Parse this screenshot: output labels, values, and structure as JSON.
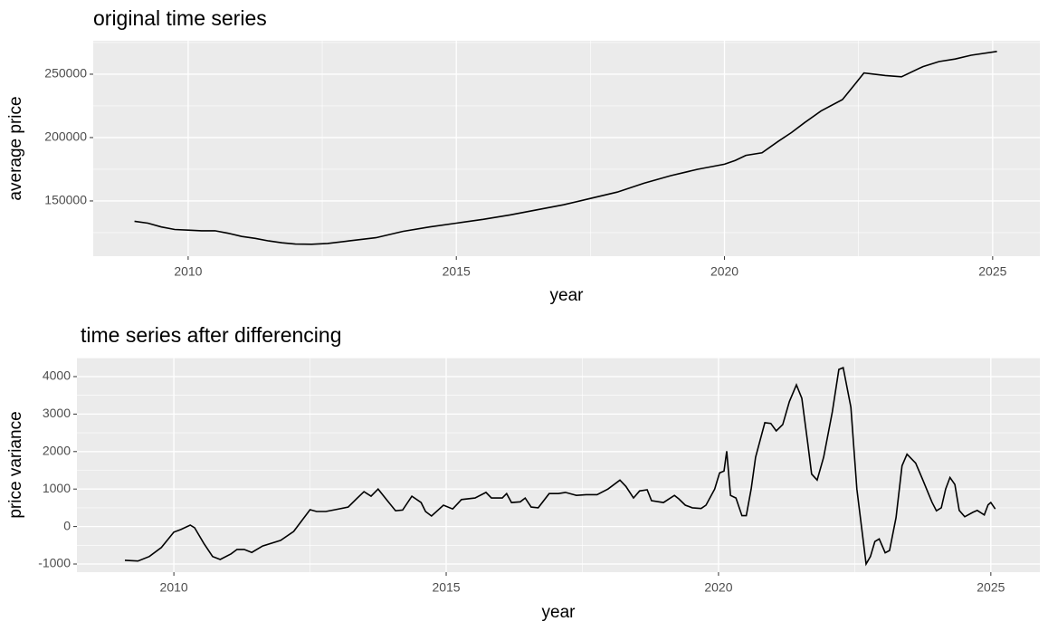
{
  "chart_data": [
    {
      "type": "line",
      "title": "original time series",
      "x_label": "year",
      "y_label": "average price",
      "xlim": [
        2008.23,
        2025.88
      ],
      "ylim": [
        106400,
        276400
      ],
      "xticks": [
        2010,
        2015,
        2020,
        2025
      ],
      "yticks": [
        150000,
        200000,
        250000
      ],
      "grid": true,
      "series": [
        {
          "name": "average price",
          "color": "#000000",
          "x": [
            2009.0,
            2009.25,
            2009.5,
            2009.75,
            2010.0,
            2010.25,
            2010.5,
            2010.75,
            2011.0,
            2011.25,
            2011.5,
            2011.75,
            2012.0,
            2012.3,
            2012.6,
            2013.0,
            2013.5,
            2014.0,
            2014.5,
            2015.0,
            2015.5,
            2016.0,
            2016.5,
            2017.0,
            2017.5,
            2018.0,
            2018.5,
            2019.0,
            2019.5,
            2020.0,
            2020.2,
            2020.4,
            2020.7,
            2021.0,
            2021.25,
            2021.5,
            2021.8,
            2022.2,
            2022.45,
            2022.6,
            2023.0,
            2023.3,
            2023.7,
            2024.0,
            2024.3,
            2024.6,
            2025.08
          ],
          "values": [
            134000,
            132500,
            129500,
            127500,
            127000,
            126500,
            126500,
            124500,
            122000,
            120500,
            118500,
            117000,
            116000,
            115800,
            116500,
            118500,
            121000,
            126000,
            129500,
            132500,
            135500,
            139000,
            143000,
            147000,
            152000,
            157000,
            164000,
            170000,
            175000,
            179000,
            182000,
            186000,
            188000,
            197000,
            204000,
            212000,
            221000,
            230000,
            243000,
            251000,
            249000,
            248000,
            256000,
            260000,
            262000,
            265000,
            268000
          ]
        }
      ]
    },
    {
      "type": "line",
      "title": "time series after differencing",
      "x_label": "year",
      "y_label": "price variance",
      "xlim": [
        2008.22,
        2025.9
      ],
      "ylim": [
        -1217,
        4507
      ],
      "xticks": [
        2010,
        2015,
        2020,
        2025
      ],
      "yticks": [
        -1000,
        0,
        1000,
        2000,
        3000,
        4000
      ],
      "grid": true,
      "series": [
        {
          "name": "price variance",
          "color": "#000000",
          "x": [
            2009.1,
            2009.34,
            2009.55,
            2009.77,
            2010.0,
            2010.13,
            2010.3,
            2010.38,
            2010.55,
            2010.71,
            2010.85,
            2011.05,
            2011.16,
            2011.29,
            2011.43,
            2011.63,
            2011.96,
            2012.2,
            2012.5,
            2012.62,
            2012.79,
            2012.96,
            2013.2,
            2013.37,
            2013.49,
            2013.62,
            2013.75,
            2013.92,
            2014.07,
            2014.2,
            2014.37,
            2014.54,
            2014.62,
            2014.73,
            2014.95,
            2015.12,
            2015.28,
            2015.53,
            2015.73,
            2015.83,
            2016.03,
            2016.11,
            2016.2,
            2016.36,
            2016.45,
            2016.56,
            2016.69,
            2016.89,
            2017.06,
            2017.19,
            2017.39,
            2017.57,
            2017.77,
            2017.97,
            2018.19,
            2018.3,
            2018.44,
            2018.55,
            2018.69,
            2018.77,
            2018.99,
            2019.19,
            2019.27,
            2019.39,
            2019.52,
            2019.68,
            2019.77,
            2019.93,
            2020.02,
            2020.1,
            2020.15,
            2020.22,
            2020.32,
            2020.43,
            2020.51,
            2020.6,
            2020.68,
            2020.85,
            2020.96,
            2021.06,
            2021.18,
            2021.3,
            2021.43,
            2021.53,
            2021.64,
            2021.71,
            2021.81,
            2021.93,
            2022.09,
            2022.21,
            2022.29,
            2022.43,
            2022.54,
            2022.71,
            2022.79,
            2022.87,
            2022.95,
            2023.06,
            2023.14,
            2023.26,
            2023.37,
            2023.46,
            2023.62,
            2023.75,
            2023.92,
            2024.0,
            2024.09,
            2024.17,
            2024.25,
            2024.34,
            2024.42,
            2024.52,
            2024.67,
            2024.75,
            2024.88,
            2024.95,
            2025.0,
            2025.08
          ],
          "values": [
            -900,
            -920,
            -800,
            -560,
            -150,
            -80,
            40,
            -30,
            -450,
            -800,
            -880,
            -730,
            -610,
            -610,
            -690,
            -520,
            -370,
            -130,
            450,
            400,
            400,
            450,
            520,
            760,
            930,
            810,
            1000,
            690,
            420,
            440,
            810,
            640,
            400,
            280,
            570,
            470,
            720,
            760,
            910,
            760,
            760,
            880,
            640,
            660,
            760,
            520,
            500,
            880,
            880,
            910,
            830,
            850,
            850,
            1000,
            1240,
            1070,
            760,
            950,
            980,
            690,
            640,
            830,
            740,
            570,
            500,
            480,
            570,
            1000,
            1430,
            1480,
            2010,
            830,
            760,
            290,
            290,
            1000,
            1850,
            2770,
            2750,
            2550,
            2720,
            3330,
            3780,
            3420,
            2210,
            1400,
            1240,
            1850,
            3060,
            4190,
            4240,
            3180,
            1000,
            -1000,
            -800,
            -400,
            -330,
            -700,
            -640,
            240,
            1620,
            1930,
            1690,
            1250,
            650,
            420,
            500,
            1000,
            1310,
            1120,
            430,
            260,
            380,
            430,
            310,
            580,
            640,
            470
          ]
        }
      ]
    }
  ]
}
